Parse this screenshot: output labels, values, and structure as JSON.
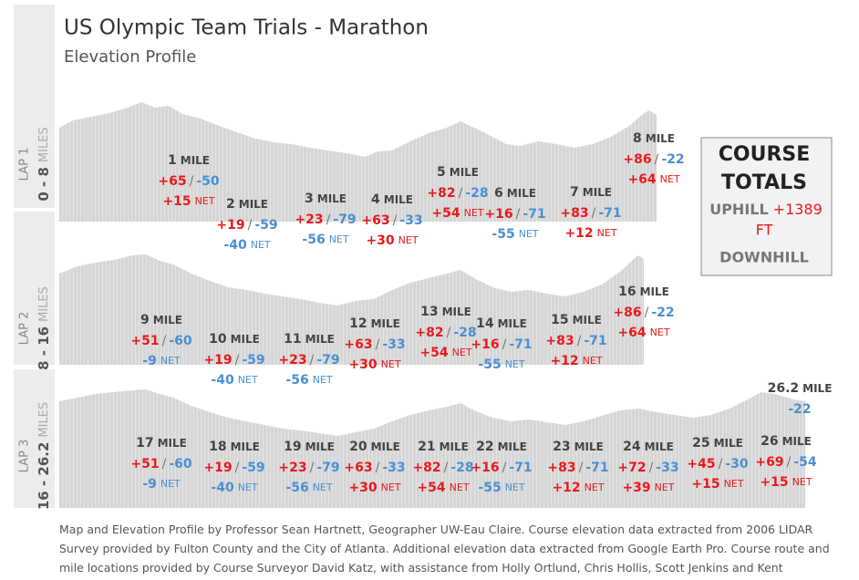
{
  "header": {
    "title": "US Olympic Team Trials - Marathon",
    "subtitle": "Elevation Profile"
  },
  "units": {
    "mile": "MILE",
    "miles": "MILES",
    "net": "NET",
    "sep": "/"
  },
  "laps": [
    {
      "lap": "LAP 1",
      "range": "0 - 8",
      "miles": [
        {
          "mile": "1",
          "up": "+65",
          "down": "-50",
          "net": "+15"
        },
        {
          "mile": "2",
          "up": "+19",
          "down": "-59",
          "net": "-40"
        },
        {
          "mile": "3",
          "up": "+23",
          "down": "-79",
          "net": "-56"
        },
        {
          "mile": "4",
          "up": "+63",
          "down": "-33",
          "net": "+30"
        },
        {
          "mile": "5",
          "up": "+82",
          "down": "-28",
          "net": "+54"
        },
        {
          "mile": "6",
          "up": "+16",
          "down": "-71",
          "net": "-55"
        },
        {
          "mile": "7",
          "up": "+83",
          "down": "-71",
          "net": "+12"
        },
        {
          "mile": "8",
          "up": "+86",
          "down": "-22",
          "net": "+64"
        }
      ]
    },
    {
      "lap": "LAP 2",
      "range": "8 - 16",
      "miles": [
        {
          "mile": "9",
          "up": "+51",
          "down": "-60",
          "net": "-9"
        },
        {
          "mile": "10",
          "up": "+19",
          "down": "-59",
          "net": "-40"
        },
        {
          "mile": "11",
          "up": "+23",
          "down": "-79",
          "net": "-56"
        },
        {
          "mile": "12",
          "up": "+63",
          "down": "-33",
          "net": "+30"
        },
        {
          "mile": "13",
          "up": "+82",
          "down": "-28",
          "net": "+54"
        },
        {
          "mile": "14",
          "up": "+16",
          "down": "-71",
          "net": "-55"
        },
        {
          "mile": "15",
          "up": "+83",
          "down": "-71",
          "net": "+12"
        },
        {
          "mile": "16",
          "up": "+86",
          "down": "-22",
          "net": "+64"
        }
      ]
    },
    {
      "lap": "LAP 3",
      "range": "16 - 26.2",
      "miles": [
        {
          "mile": "17",
          "up": "+51",
          "down": "-60",
          "net": "-9"
        },
        {
          "mile": "18",
          "up": "+19",
          "down": "-59",
          "net": "-40"
        },
        {
          "mile": "19",
          "up": "+23",
          "down": "-79",
          "net": "-56"
        },
        {
          "mile": "20",
          "up": "+63",
          "down": "-33",
          "net": "+30"
        },
        {
          "mile": "21",
          "up": "+82",
          "down": "-28",
          "net": "+54"
        },
        {
          "mile": "22",
          "up": "+16",
          "down": "-71",
          "net": "-55"
        },
        {
          "mile": "23",
          "up": "+83",
          "down": "-71",
          "net": "+12"
        },
        {
          "mile": "24",
          "up": "+72",
          "down": "-33",
          "net": "+39"
        },
        {
          "mile": "25",
          "up": "+45",
          "down": "-30",
          "net": "+15"
        },
        {
          "mile": "26",
          "up": "+69",
          "down": "-54",
          "net": "+15"
        },
        {
          "mile": "26.2",
          "down": "-22"
        }
      ]
    }
  ],
  "totals": {
    "title_1": "COURSE",
    "title_2": "TOTALS",
    "uphill_label": "UPHILL",
    "uphill_value": "+1389",
    "uphill_unit": "FT",
    "downhill_label": "DOWNHILL"
  },
  "footer": "Map and Elevation Profile by Professor Sean Hartnett, Geographer UW-Eau Claire. Course elevation data extracted from 2006 LIDAR Survey provided by Fulton County and the City of Atlanta. Additional elevation data extracted from Google Earth Pro. Course route and mile locations provided by Course Surveyor David Katz, with assistance from Holly Ortlund, Chris Hollis, Scott Jenkins and Kent"
}
